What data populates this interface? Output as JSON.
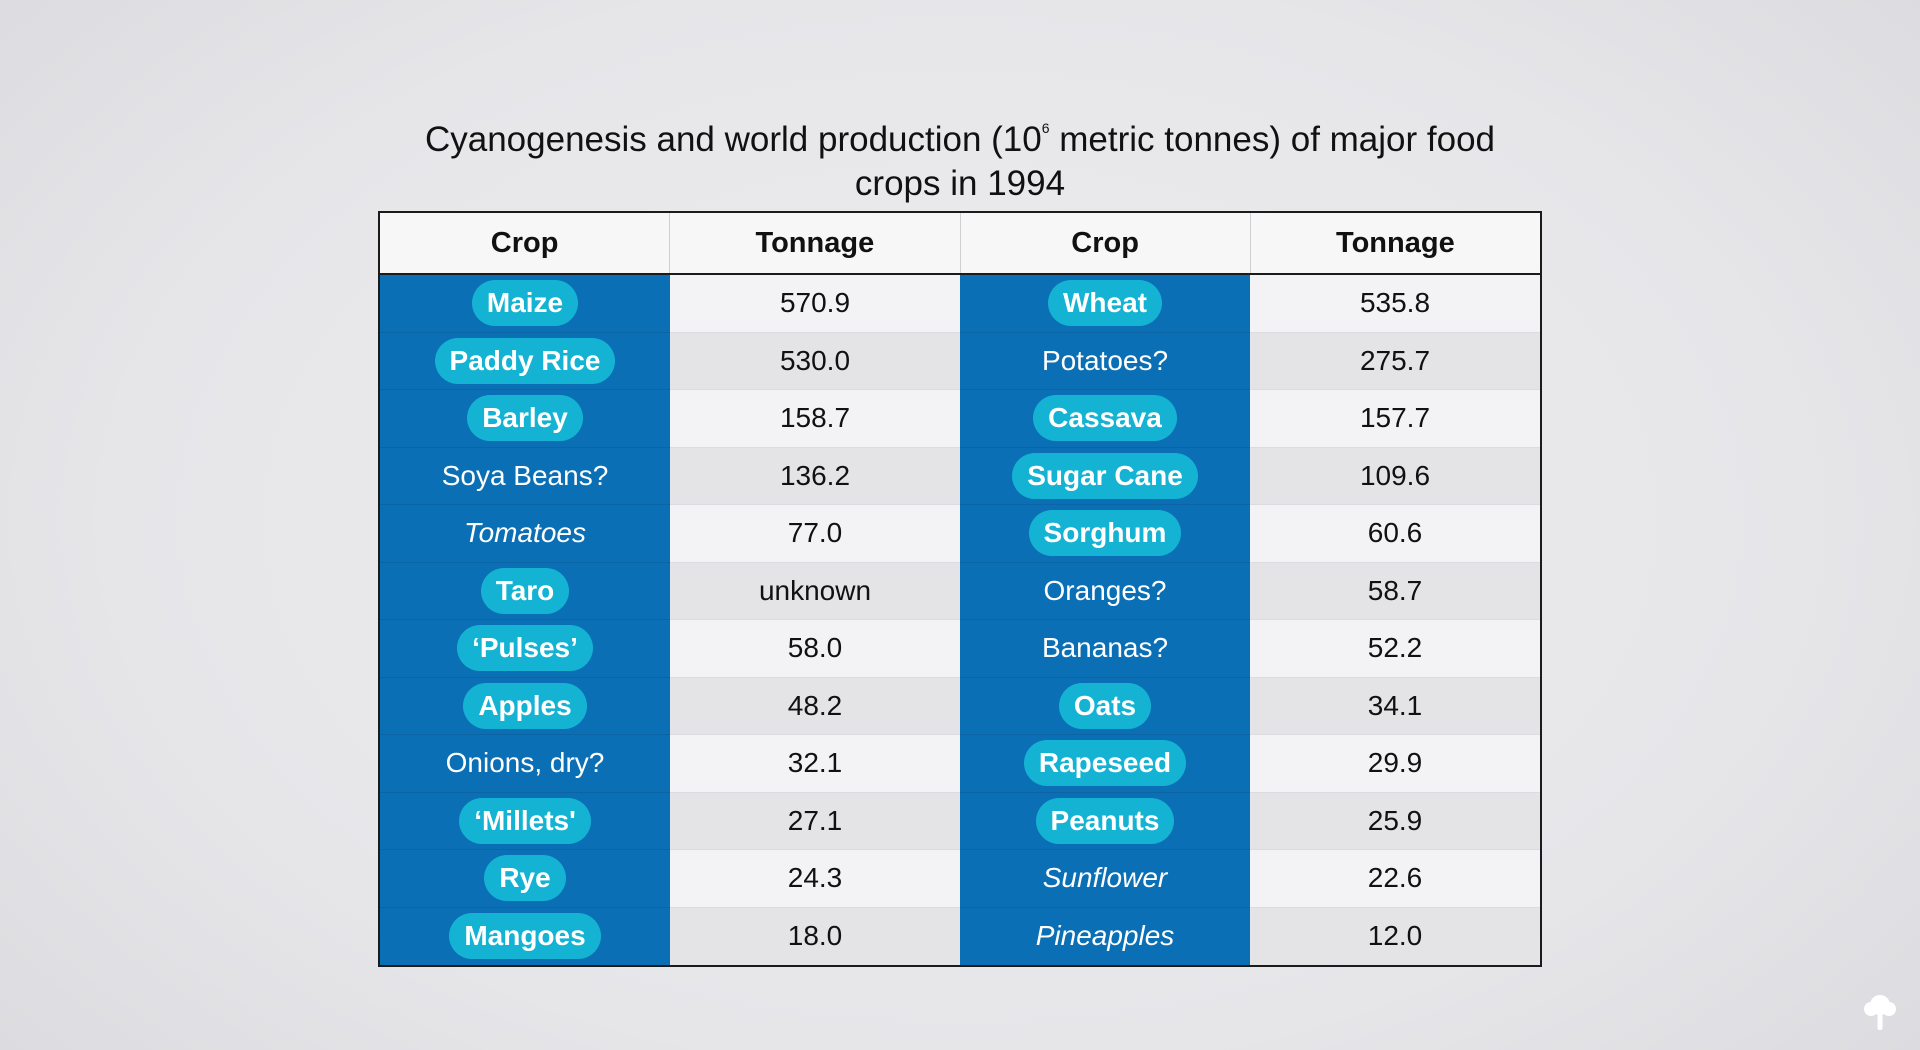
{
  "title_before": "Cyanogenesis and world production (10",
  "title_sup": "6",
  "title_after": " metric tonnes) of major food crops in 1994",
  "headers": [
    "Crop",
    "Tonnage",
    "Crop",
    "Tonnage"
  ],
  "rows": [
    {
      "left_crop": "Maize",
      "left_style": "pill",
      "left_tonnage": "570.9",
      "right_crop": "Wheat",
      "right_style": "pill",
      "right_tonnage": "535.8"
    },
    {
      "left_crop": "Paddy Rice",
      "left_style": "pill",
      "left_tonnage": "530.0",
      "right_crop": "Potatoes?",
      "right_style": "plain",
      "right_tonnage": "275.7"
    },
    {
      "left_crop": "Barley",
      "left_style": "pill",
      "left_tonnage": "158.7",
      "right_crop": "Cassava",
      "right_style": "pill",
      "right_tonnage": "157.7"
    },
    {
      "left_crop": "Soya Beans?",
      "left_style": "plain",
      "left_tonnage": "136.2",
      "right_crop": "Sugar Cane",
      "right_style": "pill",
      "right_tonnage": "109.6"
    },
    {
      "left_crop": "Tomatoes",
      "left_style": "italic",
      "left_tonnage": "77.0",
      "right_crop": "Sorghum",
      "right_style": "pill",
      "right_tonnage": "60.6"
    },
    {
      "left_crop": "Taro",
      "left_style": "pill",
      "left_tonnage": "unknown",
      "right_crop": "Oranges?",
      "right_style": "plain",
      "right_tonnage": "58.7"
    },
    {
      "left_crop": "‘Pulses’",
      "left_style": "pill",
      "left_tonnage": "58.0",
      "right_crop": "Bananas?",
      "right_style": "plain",
      "right_tonnage": "52.2"
    },
    {
      "left_crop": "Apples",
      "left_style": "pill",
      "left_tonnage": "48.2",
      "right_crop": "Oats",
      "right_style": "pill",
      "right_tonnage": "34.1"
    },
    {
      "left_crop": "Onions, dry?",
      "left_style": "plain",
      "left_tonnage": "32.1",
      "right_crop": "Rapeseed",
      "right_style": "pill",
      "right_tonnage": "29.9"
    },
    {
      "left_crop": "‘Millets'",
      "left_style": "pill",
      "left_tonnage": "27.1",
      "right_crop": "Peanuts",
      "right_style": "pill",
      "right_tonnage": "25.9"
    },
    {
      "left_crop": "Rye",
      "left_style": "pill",
      "left_tonnage": "24.3",
      "right_crop": "Sunflower",
      "right_style": "italic",
      "right_tonnage": "22.6"
    },
    {
      "left_crop": "Mangoes",
      "left_style": "pill",
      "left_tonnage": "18.0",
      "right_crop": "Pineapples",
      "right_style": "italic",
      "right_tonnage": "12.0"
    }
  ],
  "colors": {
    "crop_column_bg": "#0a6fb4",
    "pill_bg": "#15b3d3",
    "header_text": "#111111"
  },
  "icons": {
    "corner_logo": "tree-icon"
  }
}
